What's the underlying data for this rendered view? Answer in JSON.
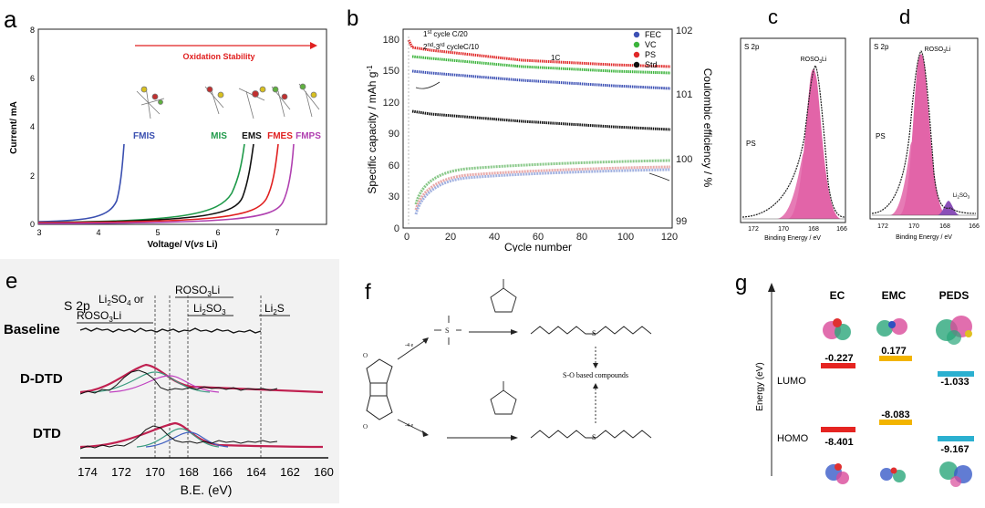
{
  "panels": {
    "a": {
      "letter": "a",
      "arrow_label": "Oxidation Stability",
      "xlabel_prefix": "Voltage/ V(",
      "xlabel_italic": "vs",
      "xlabel_suffix": " Li)",
      "ylabel": "Current/ mA",
      "xticks": [
        "3",
        "4",
        "5",
        "6",
        "7"
      ],
      "yticks": [
        "0",
        "2",
        "4",
        "6",
        "8"
      ],
      "names": {
        "fmis": "FMIS",
        "mis": "MIS",
        "ems": "EMS",
        "fmes": "FMES",
        "fmps": "FMPS"
      },
      "colors": {
        "fmis": "#3a4fb0",
        "mis": "#1f9a4a",
        "ems": "#111111",
        "fmes": "#e02020",
        "fmps": "#b040b0",
        "arrow": "#e02020"
      }
    },
    "b": {
      "letter": "b",
      "xlabel": "Cycle number",
      "ylabel_left": "Specific capacity / mAh g",
      "ylabel_left_sup": "-1",
      "ylabel_right": "Coulombic efficiency / %",
      "xticks": [
        "0",
        "20",
        "40",
        "60",
        "80",
        "100",
        "120"
      ],
      "yticks_left": [
        "0",
        "30",
        "60",
        "90",
        "120",
        "150",
        "180"
      ],
      "yticks_right": [
        "99",
        "100",
        "101",
        "102"
      ],
      "ann1_pre": "1",
      "ann1_sup": "st",
      "ann1_post": " cycle C/20",
      "ann2_pre": "2",
      "ann2_sup": "nd",
      "ann2_mid": "-3",
      "ann2_sup2": "rd",
      "ann2_post": " cycleC/10",
      "ann3": "1C",
      "legend": [
        {
          "label": "FEC",
          "color": "#3c50b4"
        },
        {
          "label": "VC",
          "color": "#3cb43c"
        },
        {
          "label": "PS",
          "color": "#e02828"
        },
        {
          "label": "Std",
          "color": "#111111"
        }
      ]
    },
    "c": {
      "letter": "c",
      "title": "S 2p",
      "peak_main": "ROSO",
      "peak_main_sub": "3",
      "peak_main_tail": "Li",
      "peak_side": "PS",
      "xlabel": "Binding Energy / eV",
      "xticks": [
        "172",
        "170",
        "168",
        "166"
      ]
    },
    "d": {
      "letter": "d",
      "title": "S 2p",
      "peak_main": "ROSO",
      "peak_main_sub": "3",
      "peak_main_tail": "Li",
      "peak_side": "PS",
      "peak_minor": "Li",
      "peak_minor_sub": "2",
      "peak_minor_mid": "SO",
      "peak_minor_sub2": "3",
      "xlabel": "Binding Energy / eV",
      "xticks": [
        "172",
        "170",
        "168",
        "166"
      ]
    },
    "e": {
      "letter": "e",
      "title": "S 2p",
      "xlabel": "B.E. (eV)",
      "xticks": [
        "174",
        "172",
        "170",
        "168",
        "166",
        "164",
        "162",
        "160"
      ],
      "rows": [
        "Baseline",
        "D-DTD",
        "DTD"
      ],
      "labels": {
        "a1": "Li",
        "a1s": "2",
        "a1b": "SO",
        "a1s2": "4",
        "a1c": " or",
        "a2": "ROSO",
        "a2s": "3",
        "a2b": "Li",
        "b1": "ROSO",
        "b1s": "3",
        "b1b": "Li",
        "c1": "Li",
        "c1s": "2",
        "c1b": "SO",
        "c1s2": "3",
        "d1": "Li",
        "d1s": "2",
        "d1b": "S"
      }
    },
    "f": {
      "letter": "f",
      "center_label": "S-O based compounds",
      "arrow_label": "-4 e"
    },
    "g": {
      "letter": "g",
      "ylabel": "Energy (eV)",
      "lumo": "LUMO",
      "homo": "HOMO",
      "molecules": [
        {
          "name": "EC",
          "lumo": "-0.227",
          "homo": "-8.401",
          "color": "#e52421"
        },
        {
          "name": "EMC",
          "lumo": "0.177",
          "homo": "-8.083",
          "color": "#f2b400"
        },
        {
          "name": "PEDS",
          "lumo": "-1.033",
          "homo": "-9.167",
          "color": "#2bb0d0"
        }
      ]
    }
  }
}
